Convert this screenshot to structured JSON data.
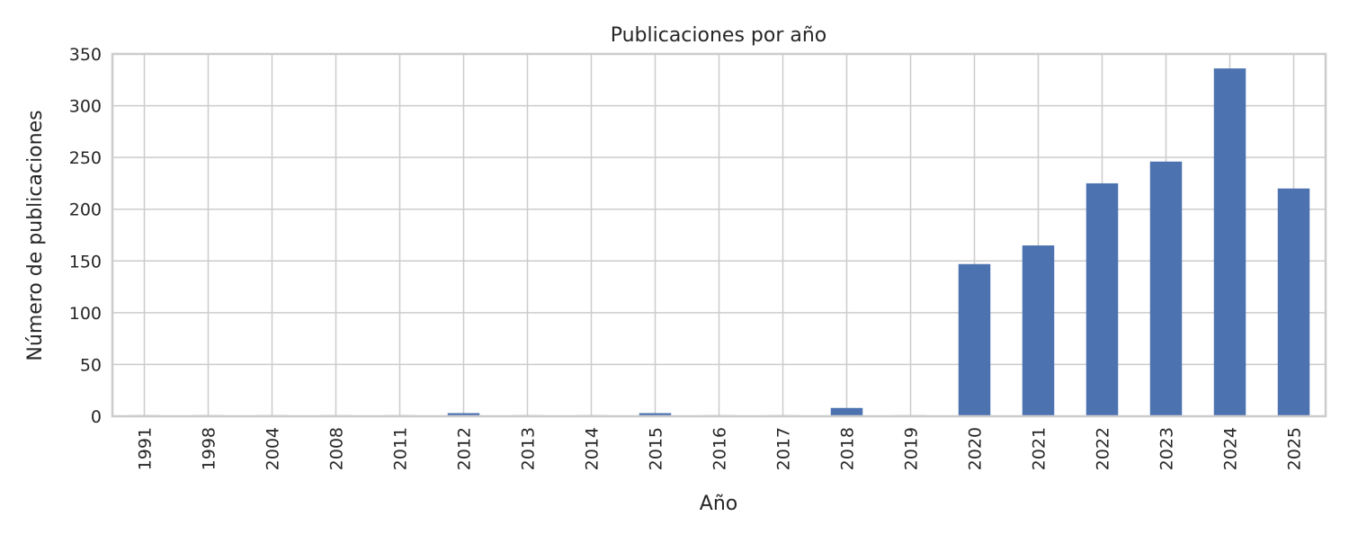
{
  "colors": {
    "bar": "#4c72b0",
    "grid": "#cccccc",
    "spine": "#cccccc",
    "text": "#262626",
    "background": "#ffffff"
  },
  "chart_data": {
    "type": "bar",
    "title": "Publicaciones por año",
    "xlabel": "Año",
    "ylabel": "Número de publicaciones",
    "categories": [
      "1991",
      "1998",
      "2004",
      "2008",
      "2011",
      "2012",
      "2013",
      "2014",
      "2015",
      "2016",
      "2017",
      "2018",
      "2019",
      "2020",
      "2021",
      "2022",
      "2023",
      "2024",
      "2025"
    ],
    "values": [
      1,
      1,
      1,
      1,
      1,
      3,
      1,
      1,
      3,
      1,
      1,
      8,
      1,
      147,
      165,
      225,
      246,
      336,
      220
    ],
    "ylim": [
      0,
      350
    ],
    "yticks": [
      0,
      50,
      100,
      150,
      200,
      250,
      300,
      350
    ],
    "grid": true,
    "legend": "none"
  }
}
